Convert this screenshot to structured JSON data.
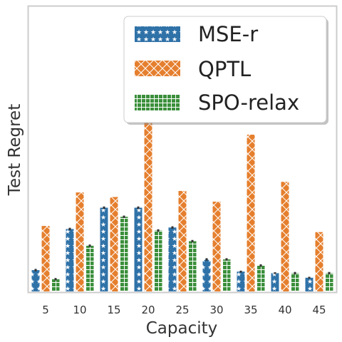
{
  "chart_data": {
    "type": "bar",
    "xlabel": "Capacity",
    "ylabel": "Test Regret",
    "categories": [
      "5",
      "10",
      "15",
      "20",
      "25",
      "30",
      "35",
      "40",
      "45"
    ],
    "ylim": [
      0,
      0.55
    ],
    "grid": false,
    "legend_position": "top-right",
    "series": [
      {
        "name": "MSE-r",
        "color": "#2f72a8",
        "hatch": "stars",
        "values": [
          0.07,
          0.205,
          0.275,
          0.275,
          0.21,
          0.105,
          0.065,
          0.06,
          0.045
        ],
        "errors": [
          0.004,
          0.004,
          0.004,
          0.004,
          0.004,
          0.004,
          0.003,
          0.003,
          0.003
        ]
      },
      {
        "name": "QPTL",
        "color": "#e57f2e",
        "hatch": "cross",
        "values": [
          0.215,
          0.325,
          0.31,
          0.555,
          0.33,
          0.295,
          0.515,
          0.36,
          0.195
        ],
        "errors": [
          0.0,
          0.0,
          0.0,
          0.0,
          0.0,
          0.0,
          0.0,
          0.0,
          0.0
        ]
      },
      {
        "name": "SPO-relax",
        "color": "#3b8f3b",
        "hatch": "grid",
        "values": [
          0.04,
          0.15,
          0.245,
          0.2,
          0.165,
          0.105,
          0.085,
          0.06,
          0.06
        ],
        "errors": [
          0.004,
          0.004,
          0.004,
          0.004,
          0.004,
          0.004,
          0.004,
          0.004,
          0.004
        ]
      }
    ]
  }
}
